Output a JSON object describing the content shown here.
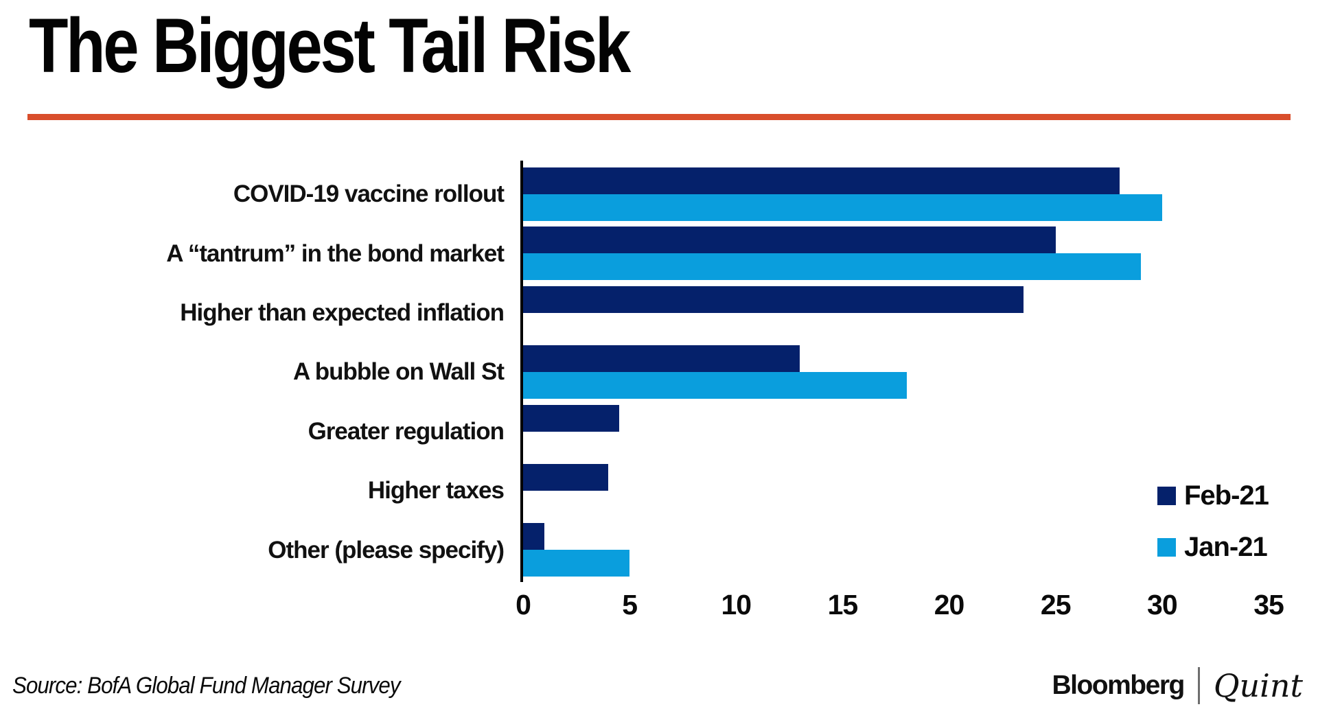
{
  "title": "The Biggest Tail Risk",
  "accent_color": "#d94e2c",
  "source": "Source: BofA Global Fund Manager Survey",
  "branding": {
    "bloomberg": "Bloomberg",
    "quint": "Quint"
  },
  "chart_data": {
    "type": "bar",
    "orientation": "horizontal",
    "title": "The Biggest Tail Risk",
    "categories": [
      "COVID-19 vaccine rollout",
      "A “tantrum” in the bond market",
      "Higher than expected inflation",
      "A bubble on Wall St",
      "Greater regulation",
      "Higher taxes",
      "Other (please specify)"
    ],
    "series": [
      {
        "name": "Feb-21",
        "color": "#05216b",
        "values": [
          28,
          25,
          23.5,
          13,
          4.5,
          4,
          1
        ]
      },
      {
        "name": "Jan-21",
        "color": "#0a9edd",
        "values": [
          30,
          29,
          0,
          18,
          0,
          0,
          5
        ]
      }
    ],
    "xlim": [
      0,
      35
    ],
    "xticks": [
      0,
      5,
      10,
      15,
      20,
      25,
      30,
      35
    ],
    "grid": false,
    "legend_position": "right"
  }
}
